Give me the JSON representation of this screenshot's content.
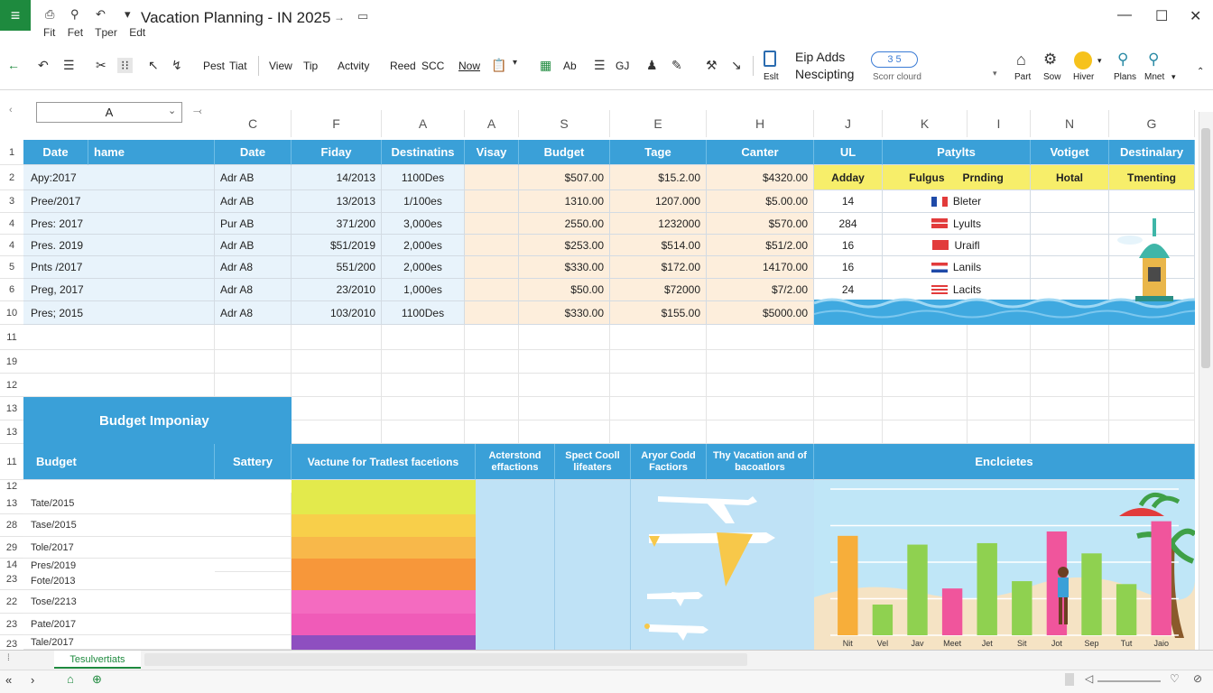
{
  "titlebar": {
    "title": "Vacation Planning - IN 2025",
    "arrow": "→",
    "menu": [
      "Fit",
      "Fet",
      "Tper",
      "Edt"
    ]
  },
  "ribbon": {
    "items": [
      "Pest",
      "Tiat",
      "View",
      "Tip",
      "Actvity",
      "Reed",
      "SCC",
      "Now",
      "Ab",
      "GJ",
      "Eslt",
      "Part",
      "Sow",
      "Hiver",
      "Plans",
      "Mnet"
    ],
    "eip_title": "Eip Adds",
    "eip_sub": "Nescipting",
    "badge": "3 5",
    "search_label": "Scorr clourd"
  },
  "namebox": "A",
  "columns": [
    "C",
    "F",
    "A",
    "A",
    "S",
    "E",
    "H",
    "J",
    "K",
    "I",
    "N",
    "G"
  ],
  "row_numbers": [
    "1",
    "2",
    "3",
    "4",
    "4",
    "5",
    "6",
    "10",
    "11",
    "19",
    "12",
    "13",
    "13",
    "11",
    "12",
    "13",
    "28",
    "29",
    "14",
    "23",
    "22",
    "23",
    "23"
  ],
  "table": {
    "headers": [
      "Date",
      "hame",
      "Date",
      "Fiday",
      "Destinatins",
      "Visay",
      "Budget",
      "Tage",
      "Canter",
      "UL",
      "Patylts",
      "Votiget",
      "Destinalary"
    ],
    "rows": [
      {
        "date": "Apy:2017",
        "b": "Adr AB",
        "c": "14/2013",
        "d": "1100Des",
        "g": "$507.00",
        "h": "$15.2.00",
        "i": "$4320.00"
      },
      {
        "date": "Pree/2017",
        "b": "Adr AB",
        "c": "13/2013",
        "d": "1/100es",
        "g": "1310.00",
        "h": "1207.000",
        "i": "$5.00.00"
      },
      {
        "date": "Pres: 2017",
        "b": "Pur AB",
        "c": "371/200",
        "d": "3,000es",
        "g": "2550.00",
        "h": "1232000",
        "i": "$570.00"
      },
      {
        "date": "Pres. 2019",
        "b": "Adr AB",
        "c": "$51/2019",
        "d": "2,000es",
        "g": "$253.00",
        "h": "$514.00",
        "i": "$51/2.00"
      },
      {
        "date": "Pnts /2017",
        "b": "Adr A8",
        "c": "551/200",
        "d": "2,000es",
        "g": "$330.00",
        "h": "$172.00",
        "i": "14170.00"
      },
      {
        "date": "Preg, 2017",
        "b": "Adr A8",
        "c": "23/2010",
        "d": "1,000es",
        "g": "$50.00",
        "h": "$72000",
        "i": "$7/2.00"
      },
      {
        "date": "Pres; 2015",
        "b": "Adr A8",
        "c": "103/2010",
        "d": "1100Des",
        "g": "$330.00",
        "h": "$155.00",
        "i": "$5000.00"
      }
    ],
    "yellow_row": [
      "Adday",
      "Fulgus",
      "Prnding",
      "Hotal",
      "Tmenting"
    ],
    "side": [
      {
        "n": "14",
        "flag": "fr",
        "label": "Bleter"
      },
      {
        "n": "284",
        "flag": "dk",
        "label": "Lyults"
      },
      {
        "n": "16",
        "flag": "cn",
        "label": "Uraifl"
      },
      {
        "n": "16",
        "flag": "nl",
        "label": "Lanils"
      },
      {
        "n": "24",
        "flag": "us",
        "label": "Lacits"
      }
    ]
  },
  "budget_section": {
    "title": "Budget Imponiay",
    "headers": [
      "Budget",
      "Sattery",
      "Vactune for Tratlest facetions",
      "Acterstond effactions",
      "Spect Cooll lifeaters",
      "Aryor Codd Factiors",
      "Thy Vacation and of bacoatlors",
      "Enclcietes"
    ],
    "rows": [
      "Tate/2015",
      "Tase/2015",
      "Tole/2017",
      "Pres/2019",
      "Fote/2013",
      "Tose/2213",
      "Pate/2017",
      "Tale/2017"
    ],
    "scale_colors": [
      "#e3ea4c",
      "#f8cf4a",
      "#f8b84a",
      "#f7973a",
      "#f46bc0",
      "#f05bb8",
      "#8e4fc0"
    ]
  },
  "chart_data": {
    "type": "bar",
    "title": "Enclcietes",
    "categories": [
      "Nit",
      "Vel",
      "Jav",
      "Meet",
      "Jet",
      "Sit",
      "Jot",
      "Sep",
      "Tut",
      "Jaio"
    ],
    "values": [
      68,
      21,
      62,
      32,
      63,
      37,
      71,
      56,
      35,
      78
    ],
    "colors": [
      "#f7ae3a",
      "#8fd150",
      "#8fd150",
      "#f0559c",
      "#8fd150",
      "#8fd150",
      "#f0559c",
      "#8fd150",
      "#8fd150",
      "#f0559c"
    ],
    "ylim": [
      0,
      100
    ],
    "grid": true
  },
  "sheet_tab": "Tesulvertiats"
}
